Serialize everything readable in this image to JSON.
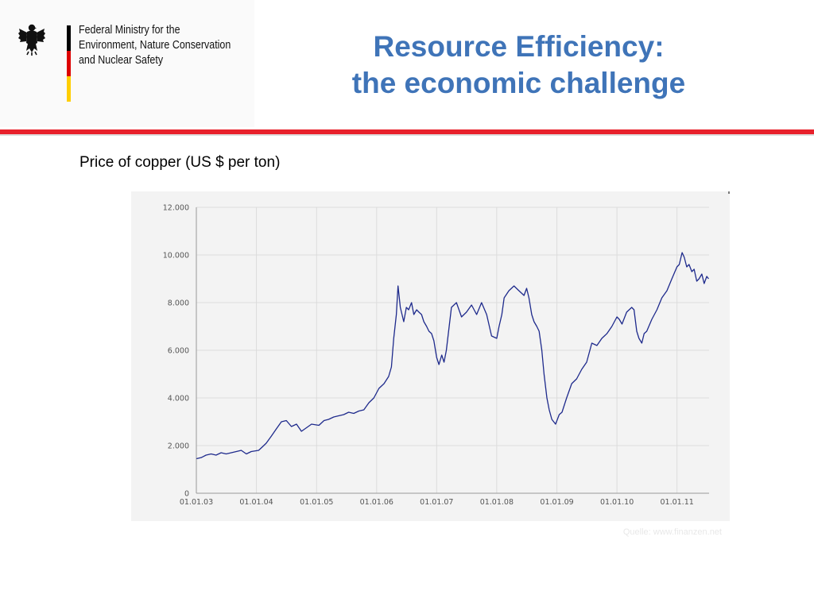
{
  "ministry": {
    "lines": [
      "Federal Ministry for the",
      "Environment, Nature Conservation",
      "and Nuclear Safety"
    ],
    "logo_icon": "federal-eagle-icon",
    "flag_colors": [
      "#000000",
      "#dd0000",
      "#ffce00"
    ]
  },
  "slide": {
    "title_line1": "Resource Efficiency:",
    "title_line2": "the economic challenge",
    "subtitle": "Price of copper (US $ per ton)",
    "source": "Quelle: www.finanzen.net"
  },
  "colors": {
    "title": "#3f74b8",
    "rule": "#e8212c",
    "line": "#1e2a8c",
    "chart_bg": "#f3f3f3",
    "grid": "#dcdcdc",
    "source": "#e8e8e8"
  },
  "chart_data": {
    "type": "line",
    "title": "",
    "xlabel": "",
    "ylabel": "",
    "xlim": [
      "2003-01-01",
      "2011-07-15"
    ],
    "ylim": [
      0,
      12000
    ],
    "grid": true,
    "legend": "none",
    "x_ticks": [
      {
        "label": "01.01.03",
        "date": "2003-01-01"
      },
      {
        "label": "01.01.04",
        "date": "2004-01-01"
      },
      {
        "label": "01.01.05",
        "date": "2005-01-01"
      },
      {
        "label": "01.01.06",
        "date": "2006-01-01"
      },
      {
        "label": "01.01.07",
        "date": "2007-01-01"
      },
      {
        "label": "01.01.08",
        "date": "2008-01-01"
      },
      {
        "label": "01.01.09",
        "date": "2009-01-01"
      },
      {
        "label": "01.01.10",
        "date": "2010-01-01"
      },
      {
        "label": "01.01.11",
        "date": "2011-01-01"
      }
    ],
    "y_ticks": [
      {
        "label": "0",
        "value": 0
      },
      {
        "label": "2.000",
        "value": 2000
      },
      {
        "label": "4.000",
        "value": 4000
      },
      {
        "label": "6.000",
        "value": 6000
      },
      {
        "label": "8.000",
        "value": 8000
      },
      {
        "label": "10.000",
        "value": 10000
      },
      {
        "label": "12.000",
        "value": 12000
      }
    ],
    "series": [
      {
        "color": "#1e2a8c",
        "x": [
          "2003-01-02",
          "2003-02-01",
          "2003-03-01",
          "2003-04-01",
          "2003-05-01",
          "2003-06-01",
          "2003-07-01",
          "2003-08-01",
          "2003-09-01",
          "2003-10-01",
          "2003-11-01",
          "2003-12-01",
          "2004-01-15",
          "2004-02-15",
          "2004-03-01",
          "2004-04-01",
          "2004-05-01",
          "2004-06-01",
          "2004-07-01",
          "2004-08-01",
          "2004-09-01",
          "2004-10-01",
          "2004-11-01",
          "2004-12-01",
          "2005-01-15",
          "2005-02-15",
          "2005-03-15",
          "2005-04-15",
          "2005-05-15",
          "2005-06-15",
          "2005-07-15",
          "2005-08-15",
          "2005-09-15",
          "2005-10-15",
          "2005-11-15",
          "2005-12-15",
          "2006-01-15",
          "2006-02-15",
          "2006-03-15",
          "2006-04-01",
          "2006-04-15",
          "2006-05-01",
          "2006-05-11",
          "2006-05-25",
          "2006-06-15",
          "2006-07-01",
          "2006-07-15",
          "2006-08-01",
          "2006-08-15",
          "2006-09-01",
          "2006-09-15",
          "2006-10-01",
          "2006-10-15",
          "2006-11-01",
          "2006-11-15",
          "2006-12-01",
          "2006-12-15",
          "2007-01-01",
          "2007-01-15",
          "2007-02-01",
          "2007-02-15",
          "2007-03-01",
          "2007-04-01",
          "2007-05-01",
          "2007-06-01",
          "2007-07-01",
          "2007-08-01",
          "2007-09-01",
          "2007-10-01",
          "2007-11-01",
          "2007-12-01",
          "2008-01-01",
          "2008-01-15",
          "2008-02-01",
          "2008-02-15",
          "2008-03-15",
          "2008-04-15",
          "2008-05-15",
          "2008-06-15",
          "2008-07-01",
          "2008-07-15",
          "2008-08-01",
          "2008-08-15",
          "2008-09-01",
          "2008-09-15",
          "2008-10-01",
          "2008-10-15",
          "2008-11-01",
          "2008-11-15",
          "2008-12-01",
          "2008-12-24",
          "2009-01-15",
          "2009-02-01",
          "2009-02-15",
          "2009-03-01",
          "2009-04-01",
          "2009-05-01",
          "2009-06-01",
          "2009-07-01",
          "2009-08-01",
          "2009-09-01",
          "2009-10-01",
          "2009-11-01",
          "2009-12-01",
          "2010-01-01",
          "2010-01-15",
          "2010-02-01",
          "2010-03-01",
          "2010-04-01",
          "2010-04-15",
          "2010-05-01",
          "2010-05-15",
          "2010-06-01",
          "2010-06-15",
          "2010-07-01",
          "2010-08-01",
          "2010-09-01",
          "2010-10-01",
          "2010-11-01",
          "2010-12-01",
          "2011-01-01",
          "2011-01-15",
          "2011-02-01",
          "2011-02-14",
          "2011-03-01",
          "2011-03-15",
          "2011-04-01",
          "2011-04-15",
          "2011-05-01",
          "2011-05-15",
          "2011-06-01",
          "2011-06-15",
          "2011-07-01",
          "2011-07-12"
        ],
        "values": [
          1450,
          1500,
          1600,
          1650,
          1600,
          1700,
          1650,
          1700,
          1750,
          1800,
          1650,
          1750,
          1800,
          2000,
          2100,
          2400,
          2700,
          3000,
          3050,
          2800,
          2900,
          2600,
          2750,
          2900,
          2850,
          3050,
          3100,
          3200,
          3250,
          3300,
          3400,
          3350,
          3450,
          3500,
          3800,
          4000,
          4400,
          4600,
          4900,
          5300,
          6500,
          7500,
          8700,
          7800,
          7200,
          7800,
          7700,
          8000,
          7500,
          7700,
          7600,
          7500,
          7200,
          7000,
          6800,
          6700,
          6400,
          5700,
          5400,
          5800,
          5500,
          6000,
          7800,
          8000,
          7400,
          7600,
          7900,
          7500,
          8000,
          7500,
          6600,
          6500,
          7000,
          7500,
          8200,
          8500,
          8700,
          8500,
          8300,
          8600,
          8200,
          7500,
          7200,
          7000,
          6800,
          6000,
          5000,
          4000,
          3500,
          3100,
          2900,
          3300,
          3400,
          3700,
          4000,
          4600,
          4800,
          5200,
          5500,
          6300,
          6200,
          6500,
          6700,
          7000,
          7400,
          7300,
          7100,
          7600,
          7800,
          7700,
          6800,
          6500,
          6300,
          6700,
          6800,
          7300,
          7700,
          8200,
          8500,
          9000,
          9500,
          9600,
          10100,
          9900,
          9500,
          9600,
          9300,
          9400,
          8900,
          9000,
          9200,
          8800,
          9100,
          9000
        ]
      }
    ]
  }
}
